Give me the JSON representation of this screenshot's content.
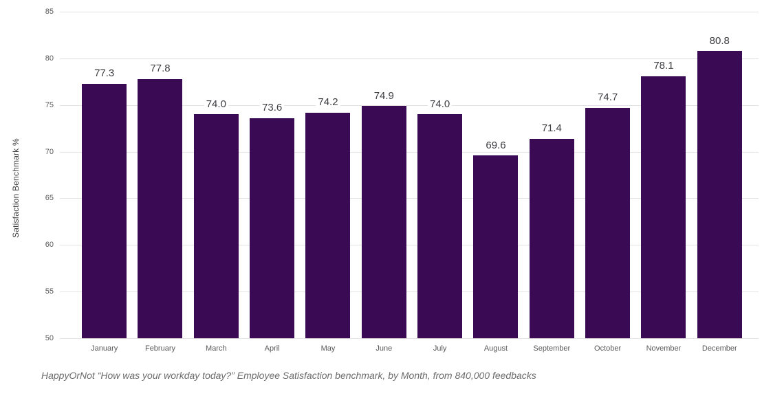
{
  "chart_data": {
    "type": "bar",
    "categories": [
      "January",
      "February",
      "March",
      "April",
      "May",
      "June",
      "July",
      "August",
      "September",
      "October",
      "November",
      "December"
    ],
    "values": [
      77.3,
      77.8,
      74.0,
      73.6,
      74.2,
      74.9,
      74.0,
      69.6,
      71.4,
      74.7,
      78.1,
      80.8
    ],
    "value_labels": [
      "77.3",
      "77.8",
      "74.0",
      "73.6",
      "74.2",
      "74.9",
      "74.0",
      "69.6",
      "71.4",
      "74.7",
      "78.1",
      "80.8"
    ],
    "title": "",
    "xlabel": "",
    "ylabel": "Satisfaction Benchmark %",
    "ylim": [
      50,
      85
    ],
    "yticks": [
      50,
      55,
      60,
      65,
      70,
      75,
      80,
      85
    ],
    "grid": true,
    "legend": "none",
    "bar_color": "#3a0a55",
    "gridline_color": "#e2e2e2"
  },
  "caption": "HappyOrNot “How was your workday today?” Employee Satisfaction benchmark, by Month, from 840,000 feedbacks"
}
